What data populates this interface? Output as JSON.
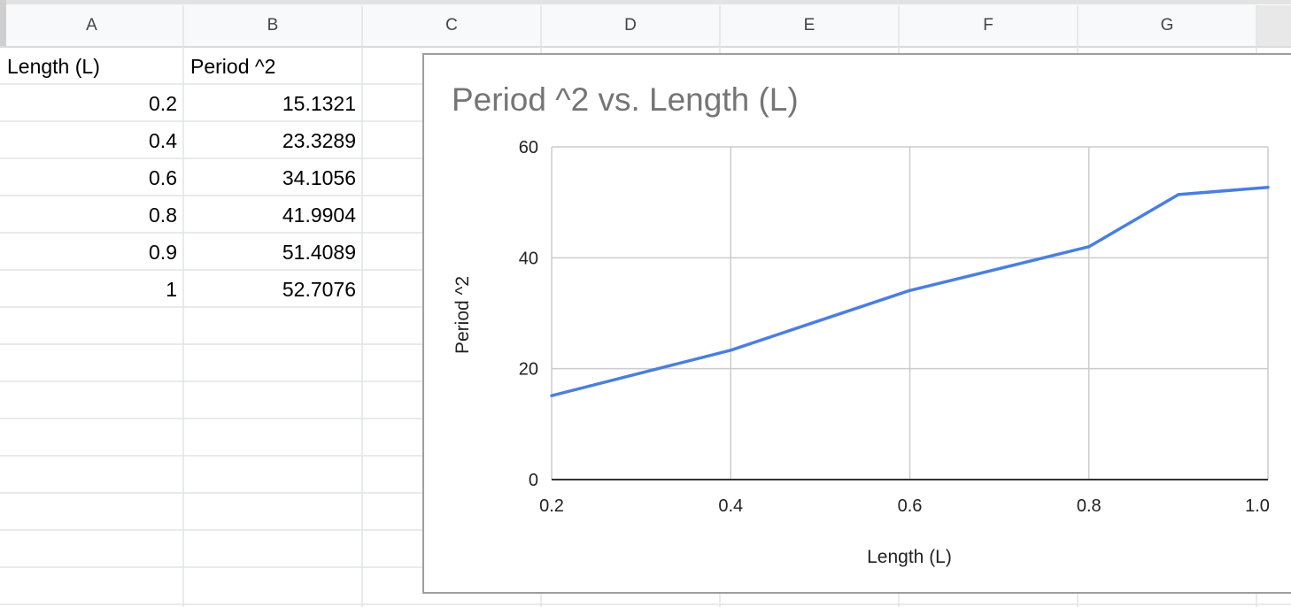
{
  "sheet": {
    "columns": [
      "A",
      "B",
      "C",
      "D",
      "E",
      "F",
      "G"
    ],
    "header_row": {
      "a": "Length (L)",
      "b": "Period ^2"
    },
    "rows": [
      {
        "a": "0.2",
        "b": "15.1321"
      },
      {
        "a": "0.4",
        "b": "23.3289"
      },
      {
        "a": "0.6",
        "b": "34.1056"
      },
      {
        "a": "0.8",
        "b": "41.9904"
      },
      {
        "a": "0.9",
        "b": "51.4089"
      },
      {
        "a": "1",
        "b": "52.7076"
      }
    ]
  },
  "chart_data": {
    "type": "line",
    "title": "Period ^2  vs. Length (L)",
    "xlabel": "Length (L)",
    "ylabel": "Period ^2",
    "x": [
      0.2,
      0.4,
      0.6,
      0.8,
      0.9,
      1.0
    ],
    "series": [
      {
        "values": [
          15.1321,
          23.3289,
          34.1056,
          41.9904,
          51.4089,
          52.7076
        ]
      }
    ],
    "xlim": [
      0.2,
      1.0
    ],
    "ylim": [
      0,
      60
    ],
    "xticks": [
      "0.2",
      "0.4",
      "0.6",
      "0.8",
      "1.0"
    ],
    "yticks": [
      "0",
      "20",
      "40",
      "60"
    ],
    "grid": true,
    "line_color": "#4a7fe0"
  }
}
